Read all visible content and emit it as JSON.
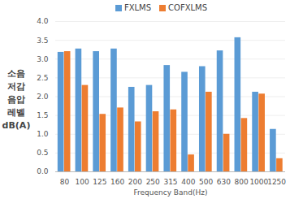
{
  "chart_data": {
    "type": "bar",
    "categories": [
      "80",
      "100",
      "125",
      "160",
      "200",
      "250",
      "315",
      "400",
      "500",
      "630",
      "800",
      "1000",
      "1250"
    ],
    "series": [
      {
        "name": "FXLMS",
        "color": "#5b9bd5",
        "values": [
          3.18,
          3.27,
          3.2,
          3.27,
          2.25,
          2.3,
          2.83,
          2.65,
          2.8,
          3.22,
          3.57,
          2.12,
          1.13
        ]
      },
      {
        "name": "COFXLMS",
        "color": "#ed7d31",
        "values": [
          3.2,
          2.3,
          1.53,
          1.7,
          1.33,
          1.6,
          1.65,
          0.45,
          2.12,
          1.0,
          1.42,
          2.07,
          0.35
        ]
      }
    ],
    "x_label": "Frequency Band(Hz)",
    "y_label": "소음 저감 음압 레벨 dB(A)",
    "ylim": [
      0,
      4
    ],
    "yticks": [
      {
        "value": 0,
        "label": "0.0"
      },
      0.5,
      {
        "value": 1,
        "label": "1.0"
      },
      1.5,
      {
        "value": 2,
        "label": "2.0"
      },
      2.5,
      {
        "value": 3,
        "label": "3.0"
      },
      3.5,
      {
        "value": 4,
        "label": "4.0"
      }
    ],
    "grid": true,
    "legend": "top"
  }
}
